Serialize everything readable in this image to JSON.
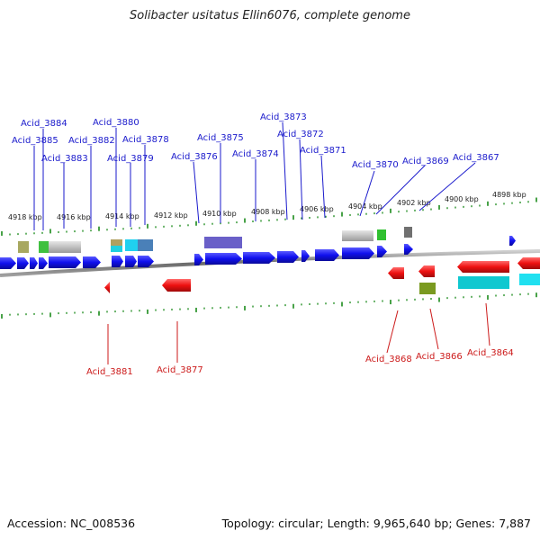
{
  "title": "Solibacter usitatus Ellin6076, complete genome",
  "footer": {
    "accession": "Accession: NC_008536",
    "summary": "Topology: circular; Length: 9,965,640 bp; Genes: 7,887"
  },
  "colors": {
    "forward_gene": "#1010ee",
    "reverse_gene": "#ee1111",
    "forward_label": "#1a1acc",
    "reverse_label": "#cc1a1a",
    "tick": "#1a8a1a",
    "backbone": "#8a8a8a"
  },
  "kbp_ticks": [
    {
      "text": "4918 kbp"
    },
    {
      "text": "4916 kbp"
    },
    {
      "text": "4914 kbp"
    },
    {
      "text": "4912 kbp"
    },
    {
      "text": "4910 kbp"
    },
    {
      "text": "4908 kbp"
    },
    {
      "text": "4906 kbp"
    },
    {
      "text": "4904 kbp"
    },
    {
      "text": "4902 kbp"
    },
    {
      "text": "4900 kbp"
    },
    {
      "text": "4898 kbp"
    }
  ],
  "forward_labels": [
    "Acid_3884",
    "Acid_3885",
    "Acid_3883",
    "Acid_3882",
    "Acid_3880",
    "Acid_3879",
    "Acid_3878",
    "Acid_3876",
    "Acid_3875",
    "Acid_3874",
    "Acid_3873",
    "Acid_3872",
    "Acid_3871",
    "Acid_3870",
    "Acid_3869",
    "Acid_3867"
  ],
  "reverse_labels": [
    "Acid_3881",
    "Acid_3877",
    "Acid_3868",
    "Acid_3866",
    "Acid_3864"
  ]
}
